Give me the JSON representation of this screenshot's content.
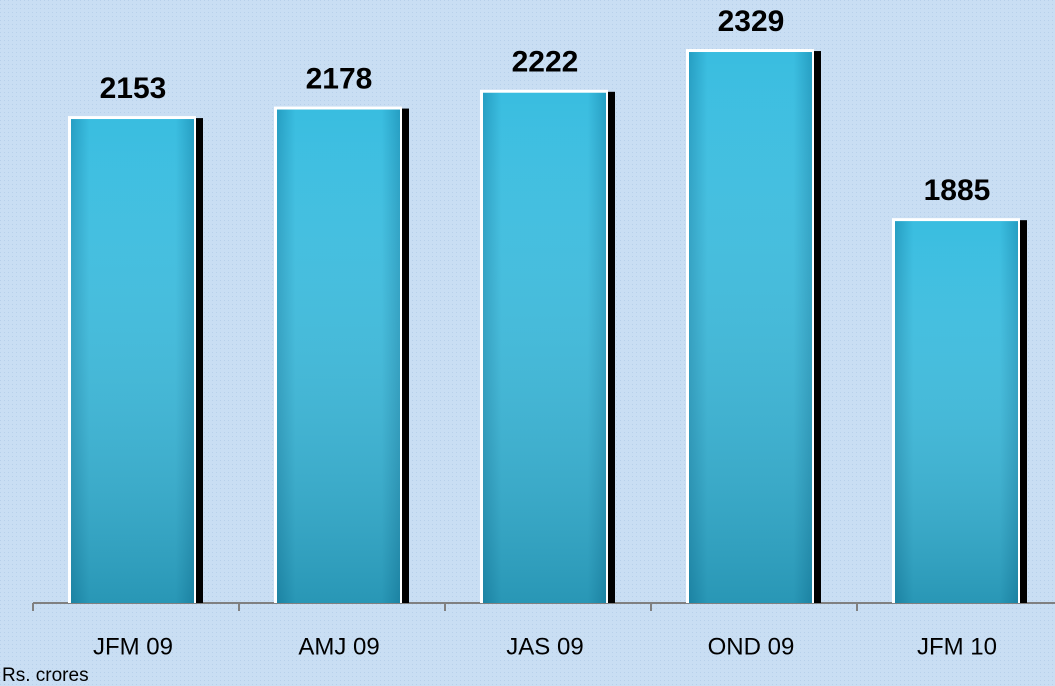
{
  "chart_data": {
    "type": "bar",
    "categories": [
      "JFM 09",
      "AMJ 09",
      "JAS 09",
      "OND 09",
      "JFM 10"
    ],
    "values": [
      2153,
      2178,
      2222,
      2329,
      1885
    ],
    "color": "#35b9dc",
    "ylim": [
      880,
      2400
    ],
    "footnote": "Rs. crores"
  }
}
